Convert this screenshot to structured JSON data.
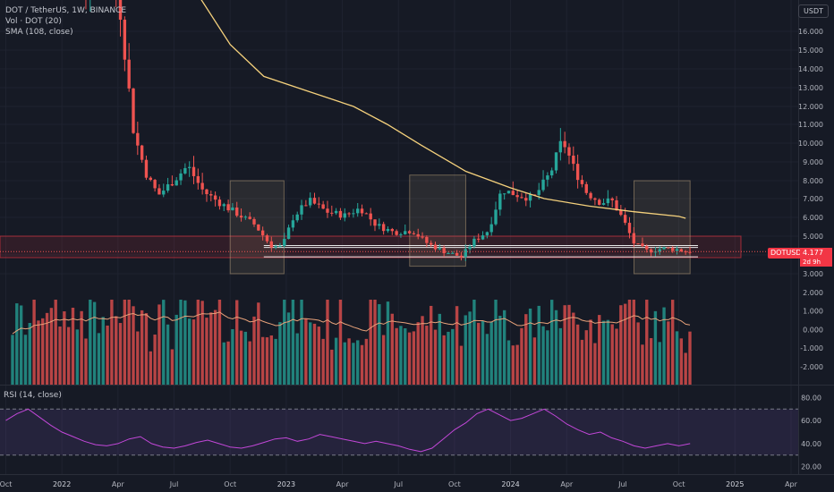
{
  "legend": {
    "symbol": "DOT / TetherUS, 1W, BINANCE",
    "volume": "Vol · DOT (20)",
    "sma": "SMA (108, close)",
    "rsi": "RSI (14, close)"
  },
  "currency_button": "USDT",
  "price_tag": {
    "symbol": "DOTUSDT",
    "price": "4.177",
    "countdown": "2d 9h"
  },
  "colors": {
    "background": "#161a25",
    "up": "#26a69a",
    "down": "#ef5350",
    "sma": "#f5d17c",
    "rsi": "#c247d8",
    "zone": "#f23645",
    "box": "#e3c28f"
  },
  "chart_data": [
    {
      "type": "candlestick",
      "title": "DOT / TetherUS, 1W, BINANCE",
      "price_axis_labels": [
        "16.000",
        "15.000",
        "14.000",
        "13.000",
        "12.000",
        "11.000",
        "10.000",
        "9.000",
        "8.000",
        "7.000",
        "6.000",
        "5.000",
        "4.000",
        "3.000",
        "2.000",
        "1.000",
        "0.000",
        "-1.000",
        "-2.000"
      ],
      "time_axis_labels": [
        "Oct",
        "2022",
        "Apr",
        "Jul",
        "Oct",
        "2023",
        "Apr",
        "Jul",
        "Oct",
        "2024",
        "Apr",
        "Jul",
        "Oct",
        "2025",
        "Apr"
      ],
      "scale": "log",
      "series": [
        {
          "name": "SMA (108, close)",
          "points": [
            [
              2022.55,
              19.0
            ],
            [
              2022.75,
              15.3
            ],
            [
              2022.9,
              13.6
            ],
            [
              2023.1,
              12.8
            ],
            [
              2023.3,
              12.0
            ],
            [
              2023.45,
              11.0
            ],
            [
              2023.6,
              9.9
            ],
            [
              2023.8,
              8.5
            ],
            [
              2024.0,
              7.6
            ],
            [
              2024.15,
              7.0
            ],
            [
              2024.35,
              6.6
            ],
            [
              2024.55,
              6.3
            ],
            [
              2024.75,
              6.05
            ],
            [
              2024.78,
              5.95
            ]
          ]
        }
      ],
      "current_price": 4.177,
      "annotations": {
        "zone": [
          4.0,
          5.0
        ],
        "lines": [
          3.9,
          4.4,
          4.5
        ],
        "boxes": [
          [
            2022.75,
            2022.99,
            3.0,
            8.0
          ],
          [
            2023.55,
            2023.8,
            3.4,
            8.3
          ],
          [
            2024.55,
            2024.8,
            3.0,
            8.0
          ]
        ]
      }
    },
    {
      "type": "bar",
      "title": "Vol · DOT (20)"
    },
    {
      "type": "line",
      "title": "RSI (14, close)",
      "axis_labels": [
        "80.00",
        "60.00",
        "40.00",
        "20.00"
      ],
      "bands": [
        30,
        70
      ],
      "series": [
        {
          "name": "RSI (14, close)",
          "x": [
            2021.75,
            2021.8,
            2021.85,
            2021.9,
            2021.95,
            2022.0,
            2022.05,
            2022.1,
            2022.15,
            2022.2,
            2022.25,
            2022.3,
            2022.35,
            2022.4,
            2022.45,
            2022.5,
            2022.55,
            2022.6,
            2022.65,
            2022.7,
            2022.75,
            2022.8,
            2022.85,
            2022.9,
            2022.95,
            2023.0,
            2023.05,
            2023.1,
            2023.15,
            2023.2,
            2023.25,
            2023.3,
            2023.35,
            2023.4,
            2023.45,
            2023.5,
            2023.55,
            2023.6,
            2023.65,
            2023.7,
            2023.75,
            2023.8,
            2023.85,
            2023.9,
            2023.95,
            2024.0,
            2024.05,
            2024.1,
            2024.15,
            2024.2,
            2024.25,
            2024.3,
            2024.35,
            2024.4,
            2024.45,
            2024.5,
            2024.55,
            2024.6,
            2024.65,
            2024.7,
            2024.75,
            2024.8
          ],
          "values": [
            60,
            66,
            70,
            63,
            56,
            50,
            46,
            42,
            39,
            38,
            40,
            44,
            46,
            40,
            37,
            36,
            38,
            41,
            43,
            40,
            37,
            36,
            38,
            41,
            44,
            45,
            42,
            44,
            48,
            46,
            44,
            42,
            40,
            42,
            40,
            38,
            35,
            33,
            36,
            44,
            52,
            58,
            66,
            70,
            65,
            60,
            62,
            66,
            70,
            64,
            57,
            52,
            48,
            50,
            45,
            42,
            38,
            36,
            38,
            40,
            38,
            40
          ]
        }
      ]
    }
  ]
}
